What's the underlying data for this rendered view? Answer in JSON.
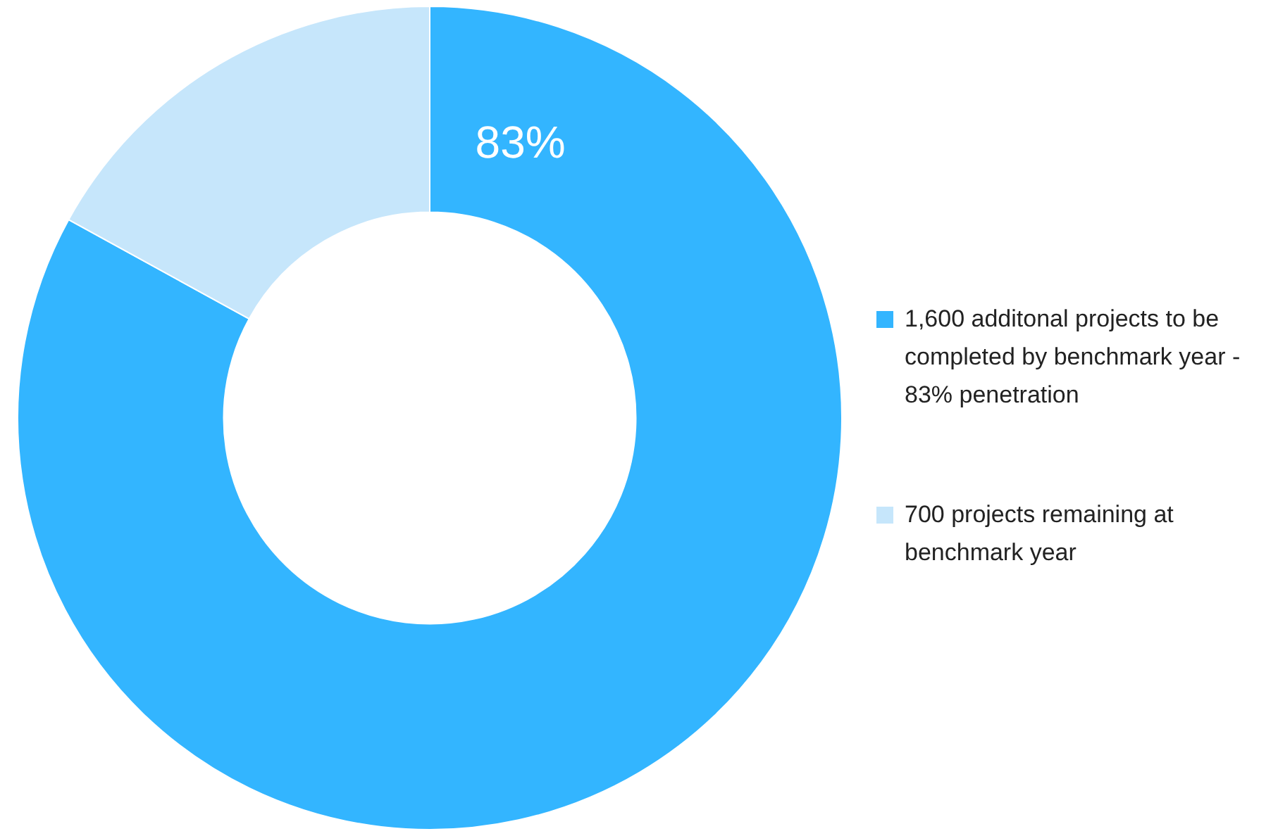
{
  "chart_data": {
    "type": "donut",
    "categories": [
      "1,600 additonal projects to be completed by benchmark year - 83% penetration",
      "700 projects remaining at benchmark year"
    ],
    "values": [
      83,
      17
    ],
    "colors": [
      "#33b5ff",
      "#c6e6fb"
    ],
    "value_labels": [
      "83%",
      null
    ],
    "legend": "right"
  }
}
